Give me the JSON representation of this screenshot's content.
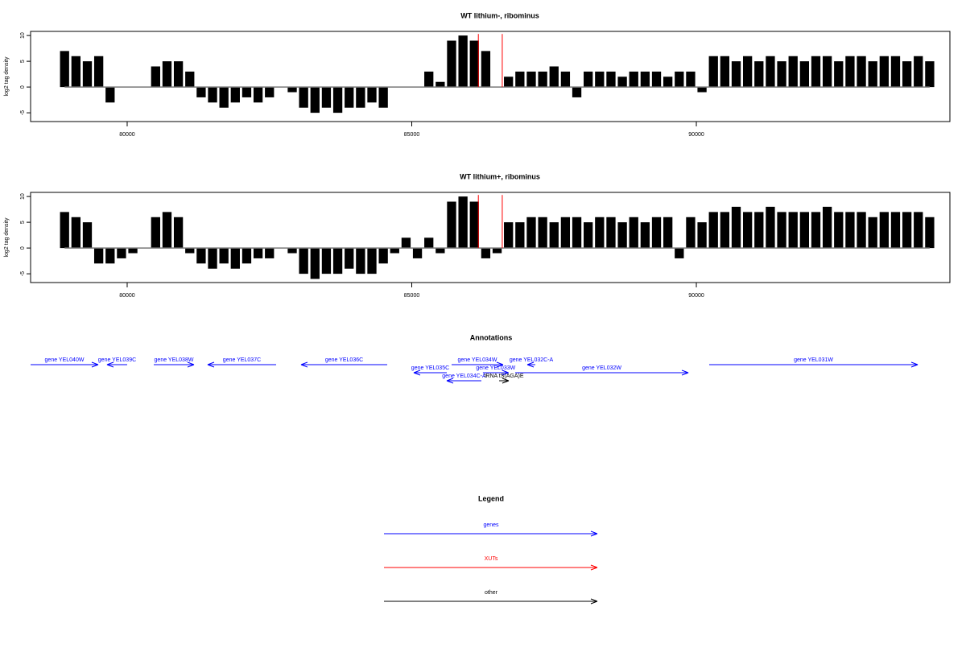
{
  "chart_data": [
    {
      "type": "bar",
      "title": "WT lithium-, ribominus",
      "ylabel": "log2 tag density",
      "xlim": [
        78303,
        94455
      ],
      "ylim": [
        -6.7,
        10.8
      ],
      "xticks": [
        80000,
        85000,
        90000
      ],
      "yticks": [
        -5,
        0,
        5,
        10
      ],
      "color": "#000000",
      "x": [
        78900,
        79100,
        79300,
        79500,
        79700,
        79900,
        80100,
        80300,
        80500,
        80700,
        80900,
        81100,
        81300,
        81500,
        81700,
        81900,
        82100,
        82300,
        82500,
        82700,
        82900,
        83100,
        83300,
        83500,
        83700,
        83900,
        84100,
        84300,
        84500,
        84700,
        84900,
        85100,
        85300,
        85500,
        85700,
        85900,
        86100,
        86300,
        86500,
        86700,
        86900,
        87100,
        87300,
        87500,
        87700,
        87900,
        88100,
        88300,
        88500,
        88700,
        88900,
        89100,
        89300,
        89500,
        89700,
        89900,
        90100,
        90300,
        90500,
        90700,
        90900,
        91100,
        91300,
        91500,
        91700,
        91900,
        92100,
        92300,
        92500,
        92700,
        92900,
        93100,
        93300,
        93500,
        93700,
        93900,
        94100
      ],
      "values": [
        7,
        6,
        5,
        6,
        -3,
        0,
        0,
        0,
        4,
        5,
        5,
        3,
        -2,
        -3,
        -4,
        -3,
        -2,
        -3,
        -2,
        0,
        -1,
        -4,
        -5,
        -4,
        -5,
        -4,
        -4,
        -3,
        -4,
        0,
        0,
        0,
        3,
        1,
        9,
        10,
        9,
        7,
        0,
        2,
        3,
        3,
        3,
        4,
        3,
        -2,
        3,
        3,
        3,
        2,
        3,
        3,
        3,
        2,
        3,
        3,
        -1,
        6,
        6,
        5,
        6,
        5,
        6,
        5,
        6,
        5,
        6,
        6,
        5,
        6,
        6,
        5,
        6,
        6,
        5,
        6,
        5
      ],
      "highlights": {
        "x": [
          86170,
          86590
        ],
        "values": [
          10.3,
          10.3
        ],
        "color": "#ff0000"
      }
    },
    {
      "type": "bar",
      "title": "WT lithium+, ribominus",
      "ylabel": "log2 tag density",
      "xlim": [
        78303,
        94455
      ],
      "ylim": [
        -6.7,
        10.8
      ],
      "xticks": [
        80000,
        85000,
        90000
      ],
      "yticks": [
        -5,
        0,
        5,
        10
      ],
      "color": "#000000",
      "x": [
        78900,
        79100,
        79300,
        79500,
        79700,
        79900,
        80100,
        80300,
        80500,
        80700,
        80900,
        81100,
        81300,
        81500,
        81700,
        81900,
        82100,
        82300,
        82500,
        82700,
        82900,
        83100,
        83300,
        83500,
        83700,
        83900,
        84100,
        84300,
        84500,
        84700,
        84900,
        85100,
        85300,
        85500,
        85700,
        85900,
        86100,
        86300,
        86500,
        86700,
        86900,
        87100,
        87300,
        87500,
        87700,
        87900,
        88100,
        88300,
        88500,
        88700,
        88900,
        89100,
        89300,
        89500,
        89700,
        89900,
        90100,
        90300,
        90500,
        90700,
        90900,
        91100,
        91300,
        91500,
        91700,
        91900,
        92100,
        92300,
        92500,
        92700,
        92900,
        93100,
        93300,
        93500,
        93700,
        93900,
        94100
      ],
      "values": [
        7,
        6,
        5,
        -3,
        -3,
        -2,
        -1,
        0,
        6,
        7,
        6,
        -1,
        -3,
        -4,
        -3,
        -4,
        -3,
        -2,
        -2,
        0,
        -1,
        -5,
        -6,
        -5,
        -5,
        -4,
        -5,
        -5,
        -3,
        -1,
        2,
        -2,
        2,
        -1,
        9,
        10,
        9,
        -2,
        -1,
        5,
        5,
        6,
        6,
        5,
        6,
        6,
        5,
        6,
        6,
        5,
        6,
        5,
        6,
        6,
        -2,
        6,
        5,
        7,
        7,
        8,
        7,
        7,
        8,
        7,
        7,
        7,
        7,
        8,
        7,
        7,
        7,
        6,
        7,
        7,
        7,
        7,
        6
      ],
      "highlights": {
        "x": [
          86170,
          86590
        ],
        "values": [
          10.3,
          10.3
        ],
        "color": "#ff0000"
      }
    }
  ],
  "annotations": {
    "title": "Annotations",
    "xlim": [
      78303,
      94455
    ],
    "features": [
      {
        "label": "gene YEL040W",
        "start": 78303,
        "end": 79491,
        "strand": "+",
        "color": "#0000ff"
      },
      {
        "label": "gene YEL039C",
        "start": 79646,
        "end": 80000,
        "strand": "-",
        "color": "#0000ff"
      },
      {
        "label": "gene YEL038W",
        "start": 80467,
        "end": 81174,
        "strand": "+",
        "color": "#0000ff"
      },
      {
        "label": "gene YEL037C",
        "start": 81414,
        "end": 82617,
        "strand": "-",
        "color": "#0000ff"
      },
      {
        "label": "gene YEL036C",
        "start": 83055,
        "end": 84569,
        "strand": "-",
        "color": "#0000ff"
      },
      {
        "label": "gene YEL034W",
        "start": 85700,
        "end": 86605,
        "strand": "+",
        "color": "#0000ff"
      },
      {
        "label": "gene YEL035C",
        "start": 85035,
        "end": 85615,
        "strand": "-",
        "color": "#0000ff"
      },
      {
        "label": "gene YEL034C-A",
        "start": 85615,
        "end": 86223,
        "strand": "-",
        "color": "#0000ff"
      },
      {
        "label": "gene YEL033W",
        "start": 86250,
        "end": 86700,
        "strand": "+",
        "color": "#0000ff"
      },
      {
        "label": "tRNA tS(AGA)E",
        "start": 86535,
        "end": 86704,
        "strand": "+",
        "color": "#000000"
      },
      {
        "label": "gene YEL032C-A",
        "start": 87030,
        "end": 87171,
        "strand": "-",
        "color": "#0000ff"
      },
      {
        "label": "gene YEL032W",
        "start": 86818,
        "end": 89859,
        "strand": "+",
        "color": "#0000ff"
      },
      {
        "label": "gene YEL031W",
        "start": 90226,
        "end": 93890,
        "strand": "+",
        "color": "#0000ff"
      }
    ]
  },
  "legend": {
    "title": "Legend",
    "items": [
      {
        "label": "genes",
        "color": "#0000ff"
      },
      {
        "label": "XUTs",
        "color": "#ff0000"
      },
      {
        "label": "other",
        "color": "#000000"
      }
    ]
  }
}
